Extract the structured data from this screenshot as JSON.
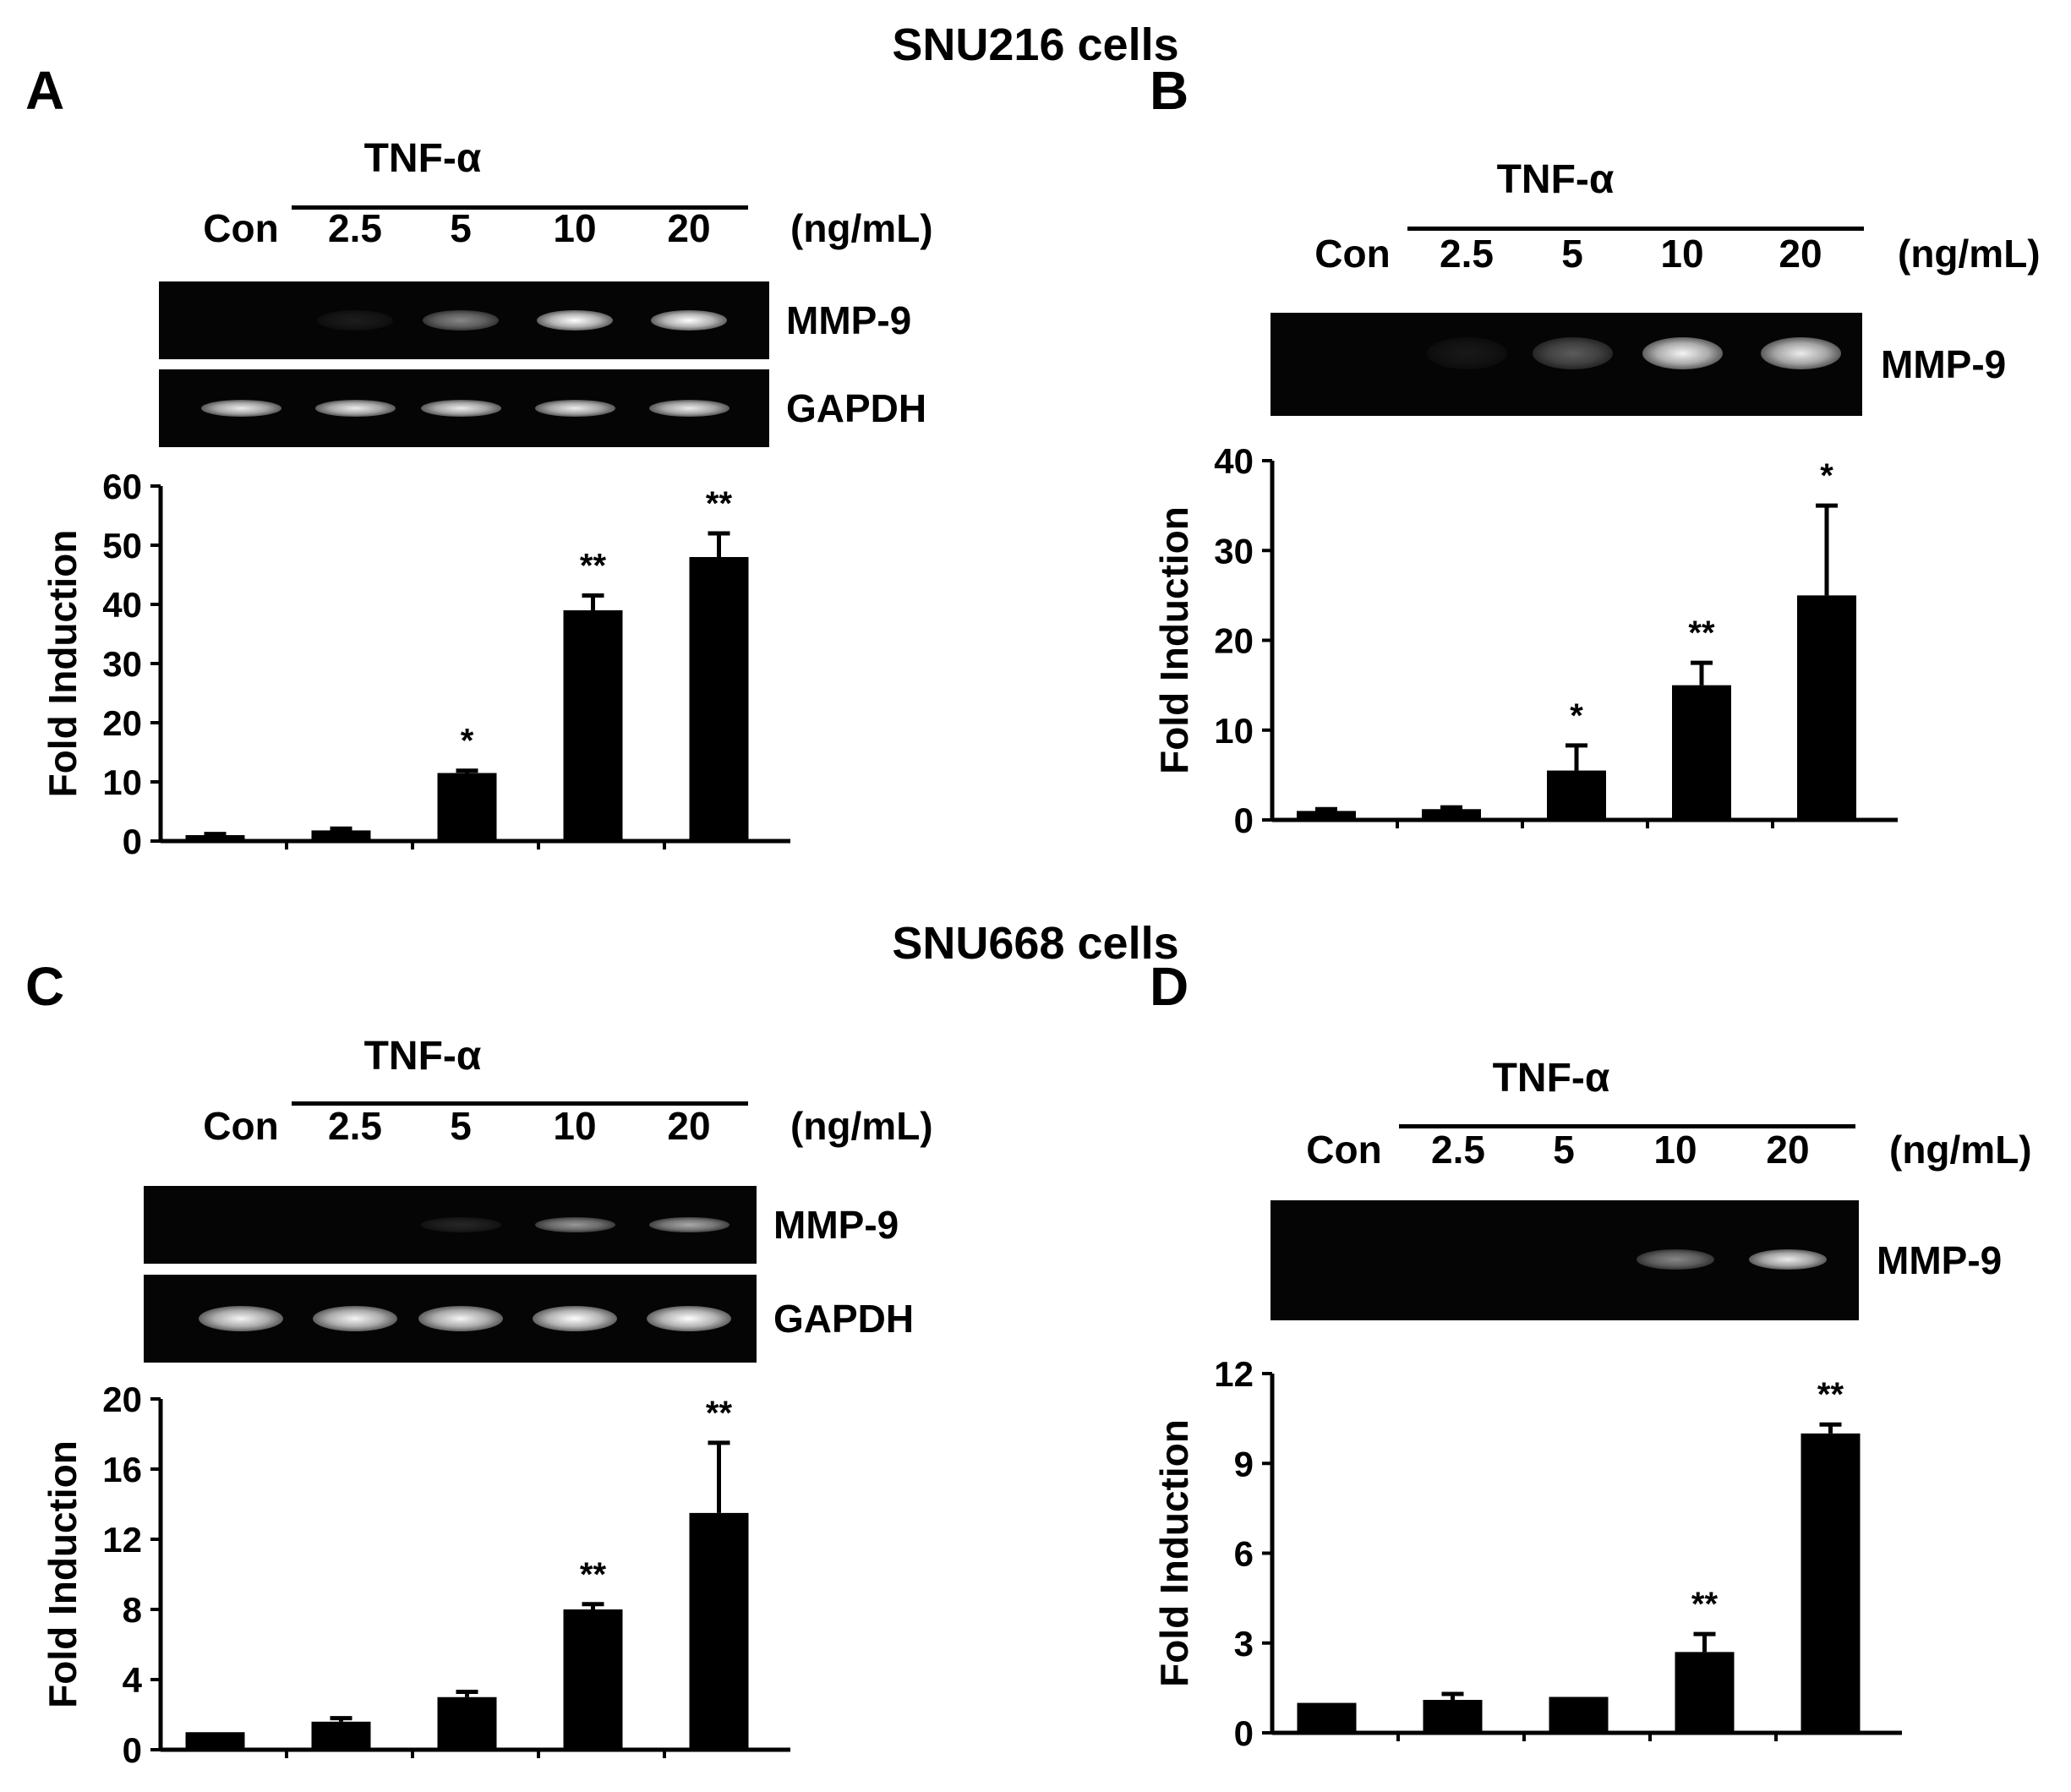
{
  "figure": {
    "sections": [
      {
        "title": "SNU216 cells"
      },
      {
        "title": "SNU668 cells"
      }
    ],
    "panels": [
      {
        "letter": "A",
        "treatment_label": "TNF-α",
        "units": "(ng/mL)",
        "lanes": [
          "Con",
          "2.5",
          "5",
          "10",
          "20"
        ],
        "gels": [
          {
            "label": "MMP-9",
            "band_intensity": [
              0.0,
              0.08,
              0.55,
              1.0,
              1.0
            ]
          },
          {
            "label": "GAPDH",
            "band_intensity": [
              0.9,
              0.9,
              0.9,
              0.9,
              0.9
            ]
          }
        ]
      },
      {
        "letter": "B",
        "treatment_label": "TNF-α",
        "units": "(ng/mL)",
        "lanes": [
          "Con",
          "2.5",
          "5",
          "10",
          "20"
        ],
        "gels": [
          {
            "label": "MMP-9",
            "band_intensity": [
              0.0,
              0.05,
              0.4,
              0.95,
              0.9
            ]
          }
        ]
      },
      {
        "letter": "C",
        "treatment_label": "TNF-α",
        "units": "(ng/mL)",
        "lanes": [
          "Con",
          "2.5",
          "5",
          "10",
          "20"
        ],
        "gels": [
          {
            "label": "MMP-9",
            "band_intensity": [
              0.0,
              0.0,
              0.15,
              0.6,
              0.65
            ]
          },
          {
            "label": "GAPDH",
            "band_intensity": [
              0.95,
              0.95,
              0.95,
              1.0,
              1.0
            ]
          }
        ]
      },
      {
        "letter": "D",
        "treatment_label": "TNF-α",
        "units": "(ng/mL)",
        "lanes": [
          "Con",
          "2.5",
          "5",
          "10",
          "20"
        ],
        "gels": [
          {
            "label": "MMP-9",
            "band_intensity": [
              0.0,
              0.0,
              0.0,
              0.55,
              0.9
            ]
          }
        ]
      }
    ]
  },
  "chart_data": [
    {
      "panel": "A",
      "type": "bar",
      "categories": [
        "Con",
        "2.5",
        "5",
        "10",
        "20"
      ],
      "values": [
        1.0,
        1.8,
        11.5,
        39.0,
        48.0
      ],
      "errors": [
        0.2,
        0.3,
        0.4,
        2.5,
        4.0
      ],
      "significance": [
        "",
        "",
        "*",
        "**",
        "**"
      ],
      "ylabel": "Fold Induction",
      "ylim": [
        0,
        60
      ],
      "yticks": [
        0,
        10,
        20,
        30,
        40,
        50,
        60
      ]
    },
    {
      "panel": "B",
      "type": "bar",
      "categories": [
        "Con",
        "2.5",
        "5",
        "10",
        "20"
      ],
      "values": [
        1.0,
        1.2,
        5.5,
        15.0,
        25.0
      ],
      "errors": [
        0.2,
        0.2,
        2.8,
        2.5,
        10.0
      ],
      "significance": [
        "",
        "",
        "*",
        "**",
        "*"
      ],
      "ylabel": "Fold Induction",
      "ylim": [
        0,
        40
      ],
      "yticks": [
        0,
        10,
        20,
        30,
        40
      ]
    },
    {
      "panel": "C",
      "type": "bar",
      "categories": [
        "Con",
        "2.5",
        "5",
        "10",
        "20"
      ],
      "values": [
        1.0,
        1.6,
        3.0,
        8.0,
        13.5
      ],
      "errors": [
        0.1,
        0.2,
        0.3,
        0.3,
        4.0
      ],
      "significance": [
        "",
        "",
        "",
        "**",
        "**"
      ],
      "ylabel": "Fold Induction",
      "ylim": [
        0,
        20
      ],
      "yticks": [
        0,
        4,
        8,
        12,
        16,
        20
      ]
    },
    {
      "panel": "D",
      "type": "bar",
      "categories": [
        "Con",
        "2.5",
        "5",
        "10",
        "20"
      ],
      "values": [
        1.0,
        1.1,
        1.2,
        2.7,
        10.0
      ],
      "errors": [
        0.05,
        0.2,
        0.1,
        0.6,
        0.3
      ],
      "significance": [
        "",
        "",
        "",
        "**",
        "**"
      ],
      "ylabel": "Fold Induction",
      "ylim": [
        0,
        12
      ],
      "yticks": [
        0,
        3,
        6,
        9,
        12
      ]
    }
  ]
}
